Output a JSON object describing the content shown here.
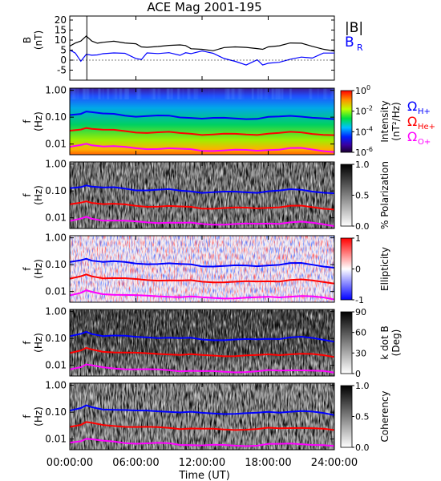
{
  "title": "ACE Mag 2001-195",
  "x_axis": {
    "label": "Time (UT)",
    "ticks": [
      "00:00:00",
      "06:00:00",
      "12:00:00",
      "18:00:00",
      "24:00:00"
    ],
    "range_hours": [
      0,
      24
    ]
  },
  "legend": {
    "b_total": "|B|",
    "b_radial": "B",
    "b_radial_sub": "R",
    "omega_h": "Ω",
    "omega_h_sub": "H+",
    "omega_he": "Ω",
    "omega_he_sub": "He+",
    "omega_o": "Ω",
    "omega_o_sub": "O+"
  },
  "colors": {
    "b_total": "#000000",
    "b_radial": "#0000ff",
    "omega_h": "#0000ff",
    "omega_he": "#ff0000",
    "omega_o": "#ff00ff"
  },
  "panels": {
    "b": {
      "ylabel": "B",
      "yunit": "(nT)",
      "yticks": [
        "20",
        "15",
        "10",
        "5",
        "0",
        "-5"
      ]
    },
    "freq": {
      "ylabel": "f",
      "yunit": "(Hz)",
      "yticks": [
        "1.00",
        "0.10",
        "0.01"
      ]
    },
    "intensity": {
      "bar_label": "Intensity",
      "bar_unit": "(nT²/Hz)",
      "bar_ticks": [
        "10",
        "10",
        "10",
        "10"
      ],
      "bar_tick_exps": [
        "0",
        "-2",
        "-4",
        "-6"
      ],
      "colormap": "rainbow"
    },
    "polarization": {
      "bar_label": "% Polarization",
      "bar_ticks": [
        "1.0",
        "0.5",
        "0.0"
      ],
      "colormap": "grayscale"
    },
    "ellipticity": {
      "bar_label": "Ellipticity",
      "bar_ticks": [
        "1",
        "0",
        "-1"
      ],
      "colormap": "blue-white-red"
    },
    "kdotb": {
      "bar_label": "k dot B",
      "bar_unit": "(Deg)",
      "bar_ticks": [
        "90",
        "60",
        "30",
        "0"
      ],
      "colormap": "grayscale"
    },
    "coherency": {
      "bar_label": "Coherency",
      "bar_ticks": [
        "1.0",
        "0.5",
        "0.0"
      ],
      "colormap": "grayscale"
    }
  },
  "chart_data": [
    {
      "type": "line",
      "panel": "B",
      "xlabel": "Time (UT)",
      "ylabel": "B (nT)",
      "xlim": [
        0,
        24
      ],
      "ylim": [
        -10,
        22
      ],
      "series": [
        {
          "name": "|B|",
          "color": "#000000",
          "x": [
            0,
            0.5,
            1,
            1.5,
            2,
            2.5,
            3,
            4,
            5,
            6,
            6.5,
            7,
            8,
            9,
            10,
            10.5,
            11,
            12,
            13,
            14,
            15,
            16,
            17,
            17.5,
            18,
            19,
            20,
            21,
            22,
            23,
            24
          ],
          "y": [
            7,
            8,
            9,
            12,
            10,
            9,
            9,
            9,
            8,
            8,
            7,
            7,
            7,
            7,
            7,
            7,
            6,
            6,
            5,
            6,
            6,
            6,
            6,
            6,
            7,
            7,
            8,
            8,
            7,
            6,
            5
          ]
        },
        {
          "name": "B_R",
          "color": "#0000ff",
          "x": [
            0,
            0.5,
            1,
            1.5,
            2,
            2.5,
            3,
            4,
            5,
            6,
            6.5,
            7,
            8,
            9,
            10,
            10.5,
            11,
            12,
            13,
            14,
            15,
            16,
            17,
            17.5,
            18,
            19,
            20,
            21,
            22,
            23,
            24
          ],
          "y": [
            5,
            4,
            0,
            3,
            2,
            2,
            3,
            4,
            4,
            1,
            0,
            3,
            3,
            4,
            3,
            4,
            3,
            4,
            3,
            1,
            0,
            -2,
            0,
            -3,
            -2,
            -1,
            1,
            2,
            1,
            3,
            3
          ]
        }
      ]
    },
    {
      "type": "line",
      "panel": "ion cyclotron frequencies (overlaid on each spectrogram)",
      "xlabel": "Time (UT)",
      "ylabel": "f (Hz)",
      "xlim": [
        0,
        24
      ],
      "ylim": [
        0.004,
        1.2
      ],
      "yscale": "log",
      "series": [
        {
          "name": "Ω H+",
          "color": "#0000ff",
          "x": [
            0,
            1,
            1.5,
            2,
            3,
            4,
            5,
            6,
            7,
            8,
            9,
            10,
            11,
            12,
            13,
            14,
            15,
            16,
            17,
            18,
            19,
            20,
            21,
            22,
            23,
            24
          ],
          "y": [
            0.12,
            0.14,
            0.17,
            0.15,
            0.13,
            0.13,
            0.12,
            0.11,
            0.11,
            0.11,
            0.11,
            0.1,
            0.1,
            0.09,
            0.09,
            0.09,
            0.09,
            0.09,
            0.09,
            0.1,
            0.1,
            0.11,
            0.11,
            0.1,
            0.09,
            0.08
          ]
        },
        {
          "name": "Ω He+",
          "color": "#ff0000",
          "x": [
            0,
            1,
            1.5,
            2,
            3,
            4,
            5,
            6,
            7,
            8,
            9,
            10,
            11,
            12,
            13,
            14,
            15,
            16,
            17,
            18,
            19,
            20,
            21,
            22,
            23,
            24
          ],
          "y": [
            0.03,
            0.035,
            0.042,
            0.038,
            0.033,
            0.032,
            0.03,
            0.028,
            0.027,
            0.027,
            0.027,
            0.025,
            0.025,
            0.023,
            0.023,
            0.023,
            0.023,
            0.023,
            0.023,
            0.025,
            0.025,
            0.027,
            0.027,
            0.025,
            0.023,
            0.021
          ]
        },
        {
          "name": "Ω O+",
          "color": "#ff00ff",
          "x": [
            0,
            1,
            1.5,
            2,
            3,
            4,
            5,
            6,
            7,
            8,
            9,
            10,
            11,
            12,
            13,
            14,
            15,
            16,
            17,
            18,
            19,
            20,
            21,
            22,
            23,
            24
          ],
          "y": [
            0.0075,
            0.0088,
            0.0105,
            0.0095,
            0.0083,
            0.008,
            0.0075,
            0.007,
            0.0068,
            0.0068,
            0.0068,
            0.0063,
            0.0063,
            0.0058,
            0.0058,
            0.0058,
            0.0058,
            0.0058,
            0.0058,
            0.0063,
            0.0063,
            0.0068,
            0.0068,
            0.0063,
            0.0058,
            0.0052
          ]
        }
      ]
    },
    {
      "type": "heatmap",
      "panel": "Intensity",
      "colorbar_range": [
        1e-06,
        1
      ],
      "colorbar_scale": "log"
    },
    {
      "type": "heatmap",
      "panel": "% Polarization",
      "colorbar_range": [
        0,
        1
      ]
    },
    {
      "type": "heatmap",
      "panel": "Ellipticity",
      "colorbar_range": [
        -1,
        1
      ]
    },
    {
      "type": "heatmap",
      "panel": "k dot B (Deg)",
      "colorbar_range": [
        0,
        90
      ]
    },
    {
      "type": "heatmap",
      "panel": "Coherency",
      "colorbar_range": [
        0,
        1
      ]
    }
  ]
}
